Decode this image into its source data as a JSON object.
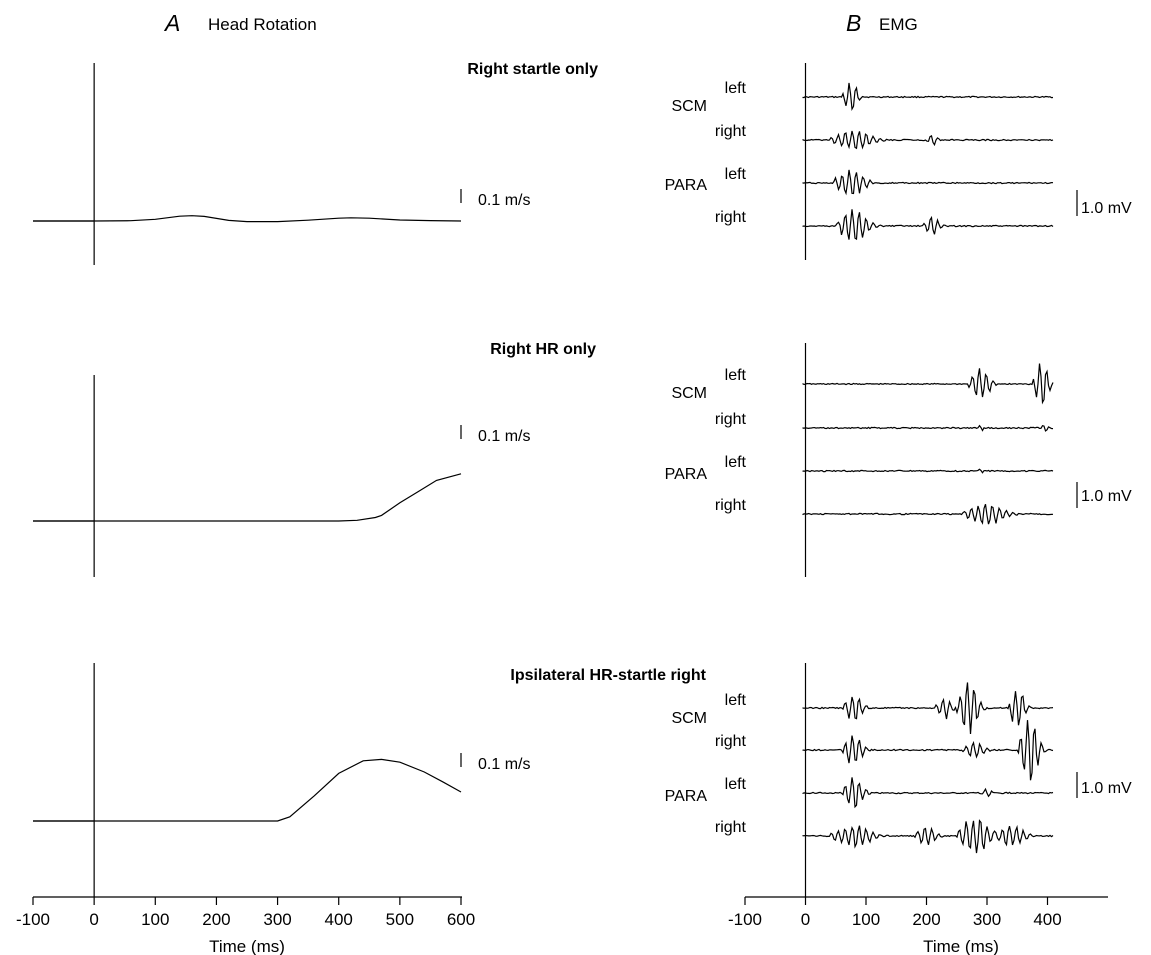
{
  "figure": {
    "panel_a": {
      "letter": "A",
      "name": "Head Rotation"
    },
    "panel_b": {
      "letter": "B",
      "name": "EMG"
    },
    "scale_a": "0.1 m/s",
    "scale_b": "1.0 mV"
  },
  "chart_data": [
    {
      "type": "line",
      "panel": "A",
      "xlabel": "Time (ms)",
      "xlim": [
        -100,
        600
      ],
      "xticks": [
        "-100",
        "0",
        "100",
        "200",
        "300",
        "400",
        "500",
        "600"
      ],
      "grid": false,
      "rows": [
        {
          "title": "Right startle only",
          "series": [
            {
              "x": [
                -100,
                0,
                60,
                100,
                140,
                160,
                180,
                220,
                250,
                300,
                350,
                400,
                420,
                450,
                500,
                550,
                600
              ],
              "y": [
                0,
                0,
                0.02,
                0.12,
                0.34,
                0.38,
                0.33,
                0.04,
                -0.04,
                -0.04,
                0.06,
                0.2,
                0.23,
                0.2,
                0.07,
                0.03,
                0.0
              ]
            }
          ]
        },
        {
          "title": "Right HR only",
          "series": [
            {
              "x": [
                -100,
                0,
                100,
                200,
                300,
                400,
                430,
                460,
                470,
                500,
                530,
                560,
                600
              ],
              "y": [
                0,
                0,
                0,
                0,
                0,
                0,
                0.05,
                0.25,
                0.4,
                1.3,
                2.1,
                2.9,
                3.37
              ]
            }
          ]
        },
        {
          "title": "Ipsilateral HR-startle right",
          "series": [
            {
              "x": [
                -100,
                0,
                100,
                200,
                300,
                320,
                360,
                400,
                440,
                470,
                500,
                540,
                570,
                600
              ],
              "y": [
                0,
                0,
                0,
                0,
                0,
                0.3,
                1.8,
                3.4,
                4.3,
                4.4,
                4.2,
                3.5,
                2.8,
                2.07
              ]
            }
          ]
        }
      ]
    },
    {
      "type": "line",
      "panel": "B",
      "xlabel": "Time (ms)",
      "xlim": [
        -100,
        500
      ],
      "xticks": [
        "-100",
        "0",
        "100",
        "200",
        "300",
        "400"
      ],
      "grid": false,
      "muscle_labels": [
        "SCM",
        "PARA"
      ],
      "side_labels": [
        "left",
        "right",
        "left",
        "right"
      ],
      "rows": [
        {
          "title": "Right startle only",
          "series": [
            {
              "muscle": "SCM",
              "side": "left",
              "bursts": [
                [
                  75,
                  15,
                  0.6
                ]
              ]
            },
            {
              "muscle": "SCM",
              "side": "right",
              "bursts": [
                [
                  80,
                  40,
                  0.35
                ],
                [
                  210,
                  10,
                  0.2
                ]
              ]
            },
            {
              "muscle": "PARA",
              "side": "left",
              "bursts": [
                [
                  75,
                  30,
                  0.5
                ]
              ]
            },
            {
              "muscle": "PARA",
              "side": "right",
              "bursts": [
                [
                  80,
                  30,
                  0.6
                ],
                [
                  210,
                  15,
                  0.35
                ]
              ]
            }
          ]
        },
        {
          "title": "Right HR only",
          "series": [
            {
              "muscle": "SCM",
              "side": "left",
              "bursts": [
                [
                  290,
                  20,
                  0.6
                ],
                [
                  390,
                  15,
                  0.9
                ]
              ]
            },
            {
              "muscle": "SCM",
              "side": "right",
              "bursts": [
                [
                  290,
                  5,
                  0.15
                ],
                [
                  395,
                  8,
                  0.15
                ]
              ]
            },
            {
              "muscle": "PARA",
              "side": "left",
              "bursts": [
                [
                  290,
                  5,
                  0.1
                ]
              ]
            },
            {
              "muscle": "PARA",
              "side": "right",
              "bursts": [
                [
                  300,
                  40,
                  0.4
                ]
              ]
            }
          ]
        },
        {
          "title": "Ipsilateral HR-startle right",
          "series": [
            {
              "muscle": "SCM",
              "side": "left",
              "bursts": [
                [
                  80,
                  20,
                  0.5
                ],
                [
                  230,
                  15,
                  0.4
                ],
                [
                  270,
                  20,
                  1.0
                ],
                [
                  350,
                  15,
                  0.8
                ]
              ]
            },
            {
              "muscle": "SCM",
              "side": "right",
              "bursts": [
                [
                  80,
                  20,
                  0.6
                ],
                [
                  280,
                  20,
                  0.3
                ],
                [
                  370,
                  20,
                  1.2
                ]
              ]
            },
            {
              "muscle": "PARA",
              "side": "left",
              "bursts": [
                [
                  80,
                  20,
                  0.6
                ],
                [
                  300,
                  10,
                  0.15
                ]
              ]
            },
            {
              "muscle": "PARA",
              "side": "right",
              "bursts": [
                [
                  80,
                  40,
                  0.4
                ],
                [
                  200,
                  20,
                  0.4
                ],
                [
                  280,
                  30,
                  0.7
                ],
                [
                  340,
                  30,
                  0.4
                ]
              ]
            }
          ]
        }
      ]
    }
  ]
}
